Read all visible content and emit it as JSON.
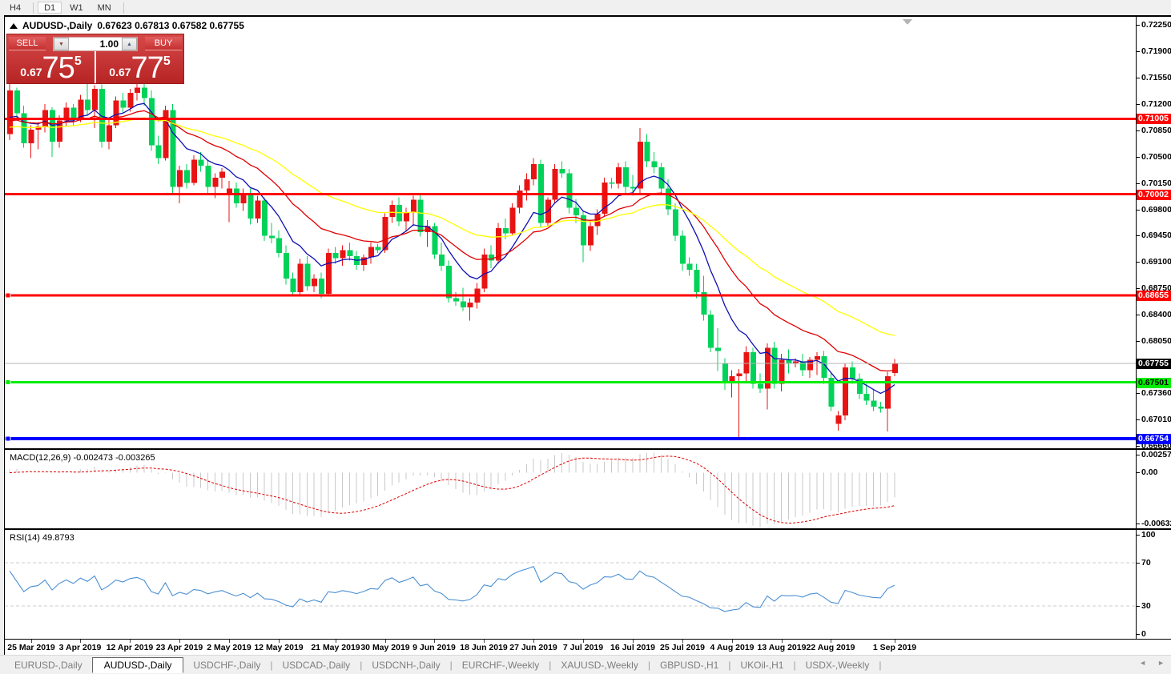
{
  "toolbar": {
    "timeframes": [
      "H4",
      "D1",
      "W1",
      "MN"
    ],
    "active": "D1"
  },
  "window": {
    "symbol_title": "AUDUSD-,Daily",
    "ohlc_line": "0.67623 0.67813 0.67582 0.67755"
  },
  "trade_panel": {
    "sell_label": "SELL",
    "buy_label": "BUY",
    "volume": "1.00",
    "spin_down_glyph": "▼",
    "spin_up_glyph": "▲",
    "sell_price": {
      "prefix": "0.67",
      "big": "75",
      "sup": "5"
    },
    "buy_price": {
      "prefix": "0.67",
      "big": "77",
      "sup": "5"
    }
  },
  "macd_panel": {
    "label": "MACD(12,26,9)",
    "values": "-0.002473 -0.003265"
  },
  "rsi_panel": {
    "label": "RSI(14)",
    "value": "49.8793"
  },
  "tabs": {
    "active_index": 1,
    "scroll_left_glyph": "◄",
    "scroll_right_glyph": "►",
    "items": [
      "EURUSD-,Daily",
      "AUDUSD-,Daily",
      "USDCHF-,Daily",
      "USDCAD-,Daily",
      "USDCNH-,Daily",
      "EURCHF-,Weekly",
      "XAUUSD-,Weekly",
      "GBPUSD-,H1",
      "UKOil-,H1",
      "USDX-,Weekly"
    ]
  },
  "chart_data": {
    "type": "candlestick",
    "symbol": "AUDUSD-",
    "timeframe": "Daily",
    "title": "AUDUSD-,Daily",
    "last_ohlc": {
      "open": 0.67623,
      "high": 0.67813,
      "low": 0.67582,
      "close": 0.67755
    },
    "current_price": 0.67755,
    "y_axis": {
      "price_at_top": 0.7236,
      "price_at_bottom": 0.66625,
      "ticks": [
        0.7225,
        0.719,
        0.7155,
        0.712,
        0.7085,
        0.705,
        0.7015,
        0.698,
        0.6945,
        0.691,
        0.6875,
        0.684,
        0.6805,
        0.6771,
        0.6736,
        0.6701,
        0.6666
      ]
    },
    "h_lines": [
      {
        "price": 0.71005,
        "color": "#ff0000",
        "width": 3,
        "text_color": "#ffffff",
        "marker": false
      },
      {
        "price": 0.70002,
        "color": "#ff0000",
        "width": 3,
        "text_color": "#ffffff",
        "marker": false
      },
      {
        "price": 0.68655,
        "color": "#ff0000",
        "width": 3,
        "text_color": "#ffffff",
        "marker": true
      },
      {
        "price": 0.67501,
        "color": "#00ee00",
        "width": 3,
        "text_color": "#000000",
        "marker": true
      },
      {
        "price": 0.66754,
        "color": "#0000ff",
        "width": 4,
        "text_color": "#ffffff",
        "marker": true
      }
    ],
    "moving_averages": [
      {
        "name": "fast",
        "period": 9,
        "color": "#0f0fb4",
        "seed": 0.7106
      },
      {
        "name": "medium",
        "period": 21,
        "color": "#e00000",
        "seed": 0.709
      },
      {
        "name": "slow",
        "period": 42,
        "color": "#ffff00",
        "seed": 0.7062
      }
    ],
    "warmup_closes": [
      0.709,
      0.7095,
      0.7105,
      0.7115,
      0.712,
      0.71,
      0.7085,
      0.707,
      0.7075,
      0.709,
      0.711,
      0.7125,
      0.7115,
      0.7095,
      0.708,
      0.7075,
      0.7085,
      0.71,
      0.7115,
      0.711,
      0.7095,
      0.708,
      0.707,
      0.7078,
      0.7092,
      0.7105,
      0.7112,
      0.7098,
      0.7085,
      0.7092
    ],
    "candles": [
      [
        0.708,
        0.7147,
        0.7072,
        0.7138
      ],
      [
        0.7138,
        0.7142,
        0.71,
        0.7108
      ],
      [
        0.7108,
        0.7118,
        0.7062,
        0.7068
      ],
      [
        0.7068,
        0.7092,
        0.7048,
        0.7086
      ],
      [
        0.7086,
        0.7096,
        0.706,
        0.709
      ],
      [
        0.709,
        0.712,
        0.7082,
        0.7112
      ],
      [
        0.7112,
        0.7116,
        0.705,
        0.707
      ],
      [
        0.707,
        0.7105,
        0.7062,
        0.7098
      ],
      [
        0.7098,
        0.7122,
        0.709,
        0.7115
      ],
      [
        0.7115,
        0.712,
        0.7092,
        0.71
      ],
      [
        0.71,
        0.7132,
        0.7096,
        0.7126
      ],
      [
        0.7126,
        0.7148,
        0.7105,
        0.7112
      ],
      [
        0.7112,
        0.7145,
        0.7088,
        0.714
      ],
      [
        0.714,
        0.7146,
        0.7062,
        0.707
      ],
      [
        0.707,
        0.71,
        0.706,
        0.7092
      ],
      [
        0.7092,
        0.713,
        0.7088,
        0.7125
      ],
      [
        0.7125,
        0.7135,
        0.7108,
        0.7115
      ],
      [
        0.7115,
        0.714,
        0.711,
        0.7135
      ],
      [
        0.7135,
        0.7148,
        0.7125,
        0.7142
      ],
      [
        0.7142,
        0.7149,
        0.7118,
        0.7128
      ],
      [
        0.7128,
        0.7138,
        0.7058,
        0.7065
      ],
      [
        0.7065,
        0.7078,
        0.704,
        0.7048
      ],
      [
        0.7048,
        0.7118,
        0.7045,
        0.7112
      ],
      [
        0.7112,
        0.712,
        0.7002,
        0.701
      ],
      [
        0.701,
        0.7038,
        0.6988,
        0.7032
      ],
      [
        0.7032,
        0.704,
        0.7008,
        0.7015
      ],
      [
        0.7015,
        0.7052,
        0.7012,
        0.7046
      ],
      [
        0.7046,
        0.7056,
        0.703,
        0.7038
      ],
      [
        0.7038,
        0.7045,
        0.7002,
        0.701
      ],
      [
        0.701,
        0.7028,
        0.6995,
        0.7022
      ],
      [
        0.7022,
        0.7035,
        0.7008,
        0.703
      ],
      [
        0.7,
        0.7018,
        0.6963,
        0.7008
      ],
      [
        0.7008,
        0.7016,
        0.6982,
        0.6988
      ],
      [
        0.6988,
        0.7008,
        0.6978,
        0.7002
      ],
      [
        0.7002,
        0.7008,
        0.696,
        0.6968
      ],
      [
        0.6968,
        0.6998,
        0.6962,
        0.6992
      ],
      [
        0.6992,
        0.6996,
        0.6938,
        0.6945
      ],
      [
        0.6945,
        0.6962,
        0.6935,
        0.6942
      ],
      [
        0.6942,
        0.6952,
        0.6916,
        0.6922
      ],
      [
        0.6922,
        0.6932,
        0.688,
        0.6888
      ],
      [
        0.6888,
        0.6896,
        0.6864,
        0.687
      ],
      [
        0.687,
        0.6914,
        0.6866,
        0.6908
      ],
      [
        0.6908,
        0.6918,
        0.6872,
        0.6878
      ],
      [
        0.6878,
        0.6894,
        0.687,
        0.6888
      ],
      [
        0.6888,
        0.6896,
        0.6862,
        0.6868
      ],
      [
        0.6868,
        0.6928,
        0.6865,
        0.6922
      ],
      [
        0.6922,
        0.693,
        0.6908,
        0.6915
      ],
      [
        0.6915,
        0.6932,
        0.6905,
        0.6926
      ],
      [
        0.6926,
        0.6936,
        0.6912,
        0.6918
      ],
      [
        0.6918,
        0.6925,
        0.69,
        0.6906
      ],
      [
        0.6906,
        0.692,
        0.6898,
        0.6916
      ],
      [
        0.6916,
        0.6936,
        0.6908,
        0.693
      ],
      [
        0.693,
        0.6934,
        0.6922,
        0.6926
      ],
      [
        0.6926,
        0.6975,
        0.6922,
        0.697
      ],
      [
        0.697,
        0.6992,
        0.6962,
        0.6986
      ],
      [
        0.6986,
        0.6996,
        0.6958,
        0.6964
      ],
      [
        0.6964,
        0.6982,
        0.6952,
        0.6976
      ],
      [
        0.6976,
        0.6998,
        0.6958,
        0.6993
      ],
      [
        0.6993,
        0.6999,
        0.6944,
        0.695
      ],
      [
        0.695,
        0.6966,
        0.693,
        0.6958
      ],
      [
        0.6958,
        0.6962,
        0.6914,
        0.692
      ],
      [
        0.692,
        0.6936,
        0.6898,
        0.6905
      ],
      [
        0.6905,
        0.6912,
        0.6856,
        0.6862
      ],
      [
        0.6862,
        0.687,
        0.6852,
        0.6858
      ],
      [
        0.6858,
        0.6876,
        0.6845,
        0.685
      ],
      [
        0.685,
        0.6862,
        0.6832,
        0.6856
      ],
      [
        0.6856,
        0.6882,
        0.6848,
        0.6875
      ],
      [
        0.6875,
        0.6928,
        0.687,
        0.692
      ],
      [
        0.692,
        0.6932,
        0.6902,
        0.6912
      ],
      [
        0.6912,
        0.6962,
        0.6908,
        0.6955
      ],
      [
        0.6955,
        0.6968,
        0.694,
        0.6948
      ],
      [
        0.6948,
        0.6988,
        0.6945,
        0.6982
      ],
      [
        0.6982,
        0.7012,
        0.6975,
        0.7005
      ],
      [
        0.7005,
        0.7028,
        0.6992,
        0.702
      ],
      [
        0.702,
        0.7048,
        0.7012,
        0.704
      ],
      [
        0.704,
        0.7046,
        0.6956,
        0.6962
      ],
      [
        0.6962,
        0.6996,
        0.6958,
        0.6993
      ],
      [
        0.6993,
        0.704,
        0.6988,
        0.7034
      ],
      [
        0.7034,
        0.7044,
        0.7022,
        0.7028
      ],
      [
        0.7028,
        0.7034,
        0.6975,
        0.6982
      ],
      [
        0.6982,
        0.6994,
        0.6962,
        0.6972
      ],
      [
        0.6972,
        0.6978,
        0.691,
        0.6932
      ],
      [
        0.6932,
        0.6964,
        0.6925,
        0.6958
      ],
      [
        0.6958,
        0.698,
        0.6946,
        0.6974
      ],
      [
        0.6974,
        0.7022,
        0.697,
        0.7016
      ],
      [
        0.7016,
        0.7022,
        0.7008,
        0.7014
      ],
      [
        0.7014,
        0.7042,
        0.7008,
        0.7036
      ],
      [
        0.7036,
        0.7044,
        0.7002,
        0.701
      ],
      [
        0.701,
        0.7026,
        0.6998,
        0.7008
      ],
      [
        0.7008,
        0.7088,
        0.7002,
        0.707
      ],
      [
        0.707,
        0.708,
        0.7036,
        0.7044
      ],
      [
        0.7044,
        0.7056,
        0.7028,
        0.7036
      ],
      [
        0.7036,
        0.7042,
        0.7,
        0.7008
      ],
      [
        0.7008,
        0.702,
        0.6972,
        0.698
      ],
      [
        0.698,
        0.6988,
        0.6938,
        0.6945
      ],
      [
        0.6945,
        0.6952,
        0.6898,
        0.6908
      ],
      [
        0.6908,
        0.6916,
        0.6892,
        0.69
      ],
      [
        0.69,
        0.6908,
        0.6862,
        0.687
      ],
      [
        0.687,
        0.6892,
        0.6832,
        0.684
      ],
      [
        0.684,
        0.6846,
        0.679,
        0.6796
      ],
      [
        0.6796,
        0.6822,
        0.6765,
        0.6792
      ],
      [
        0.6775,
        0.6782,
        0.674,
        0.6752
      ],
      [
        0.6752,
        0.6766,
        0.673,
        0.6758
      ],
      [
        0.6758,
        0.6768,
        0.6677,
        0.6762
      ],
      [
        0.6762,
        0.6798,
        0.6752,
        0.679
      ],
      [
        0.679,
        0.6796,
        0.6742,
        0.6748
      ],
      [
        0.6748,
        0.6762,
        0.6736,
        0.6742
      ],
      [
        0.6742,
        0.6802,
        0.6714,
        0.6796
      ],
      [
        0.6796,
        0.6804,
        0.6742,
        0.6748
      ],
      [
        0.6748,
        0.6788,
        0.6738,
        0.678
      ],
      [
        0.678,
        0.6794,
        0.6762,
        0.6776
      ],
      [
        0.6776,
        0.6782,
        0.677,
        0.6778
      ],
      [
        0.6778,
        0.6788,
        0.6758,
        0.6766
      ],
      [
        0.6766,
        0.6784,
        0.6756,
        0.678
      ],
      [
        0.678,
        0.679,
        0.676,
        0.6785
      ],
      [
        0.6785,
        0.6792,
        0.6748,
        0.6756
      ],
      [
        0.6756,
        0.6762,
        0.6712,
        0.6718
      ],
      [
        0.6695,
        0.6712,
        0.6686,
        0.6706
      ],
      [
        0.6706,
        0.6775,
        0.67,
        0.677
      ],
      [
        0.677,
        0.6778,
        0.6748,
        0.6755
      ],
      [
        0.6755,
        0.6762,
        0.6728,
        0.6735
      ],
      [
        0.6735,
        0.6748,
        0.672,
        0.6726
      ],
      [
        0.6726,
        0.674,
        0.6712,
        0.6718
      ],
      [
        0.6718,
        0.6724,
        0.671,
        0.6715
      ],
      [
        0.6715,
        0.6764,
        0.6685,
        0.6758
      ],
      [
        0.67623,
        0.67813,
        0.67582,
        0.67755
      ]
    ],
    "x_labels": [
      {
        "i": 3,
        "label": "25 Mar 2019"
      },
      {
        "i": 10,
        "label": "3 Apr 2019"
      },
      {
        "i": 17,
        "label": "12 Apr 2019"
      },
      {
        "i": 24,
        "label": "23 Apr 2019"
      },
      {
        "i": 31,
        "label": "2 May 2019"
      },
      {
        "i": 38,
        "label": "12 May 2019"
      },
      {
        "i": 46,
        "label": "21 May 2019"
      },
      {
        "i": 53,
        "label": "30 May 2019"
      },
      {
        "i": 60,
        "label": "9 Jun 2019"
      },
      {
        "i": 67,
        "label": "18 Jun 2019"
      },
      {
        "i": 74,
        "label": "27 Jun 2019"
      },
      {
        "i": 81,
        "label": "7 Jul 2019"
      },
      {
        "i": 88,
        "label": "16 Jul 2019"
      },
      {
        "i": 95,
        "label": "25 Jul 2019"
      },
      {
        "i": 102,
        "label": "4 Aug 2019"
      },
      {
        "i": 109,
        "label": "13 Aug 2019"
      },
      {
        "i": 116,
        "label": "22 Aug 2019"
      },
      {
        "i": 125,
        "label": "1 Sep 2019"
      }
    ],
    "macd": {
      "label": "MACD(12,26,9)",
      "fast": 12,
      "slow": 26,
      "signal": 9,
      "main_value": -0.002473,
      "signal_value": -0.003265,
      "scale_top": 0.002574,
      "scale_bottom": -0.006326,
      "ticks": [
        "0.002574",
        "0.00",
        "-0.006326"
      ]
    },
    "rsi": {
      "label": "RSI(14)",
      "period": 14,
      "value": 49.8793,
      "levels": [
        70,
        30
      ],
      "ticks": [
        100,
        70,
        30,
        0
      ]
    },
    "colors": {
      "candle_up": "#e81414",
      "candle_down": "#00d25a",
      "ma_fast": "#0f0fb4",
      "ma_medium": "#e00000",
      "ma_slow": "#ffff00",
      "current_price_line": "#b4b4b4",
      "current_price_flag_bg": "#000000",
      "macd_bar": "#c9c9c9",
      "macd_signal": "#e00000",
      "rsi_line": "#4a8fd3",
      "rsi_level_dash": "#cccccc"
    }
  }
}
